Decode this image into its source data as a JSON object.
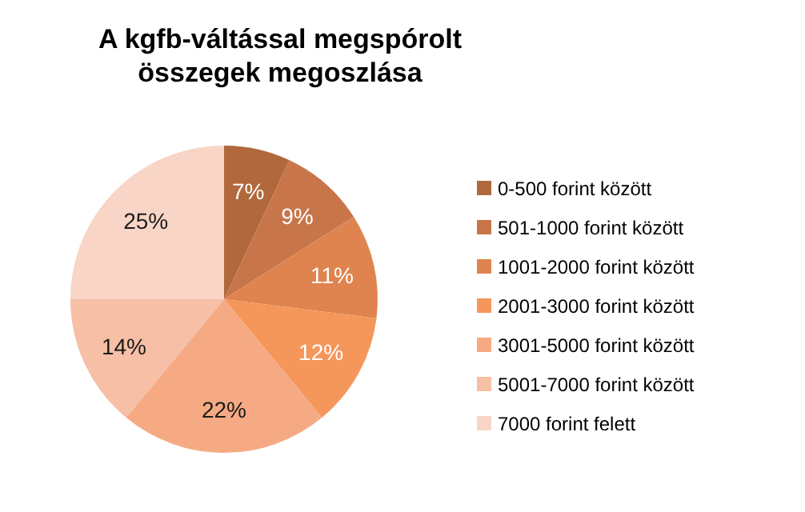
{
  "chart_data": {
    "type": "pie",
    "title": "A kgfb-váltással megspórolt összegek megoszlása",
    "categories": [
      "0-500 forint között",
      "501-1000 forint között",
      "1001-2000 forint között",
      "2001-3000 forint között",
      "3001-5000 forint között",
      "5001-7000 forint között",
      "7000 forint felett"
    ],
    "values": [
      7,
      9,
      11,
      12,
      22,
      14,
      25
    ],
    "colors": [
      "#b0683c",
      "#c8754a",
      "#df844f",
      "#f5965a",
      "#f6aa84",
      "#f6bfa6",
      "#f8d5c6"
    ],
    "value_labels": [
      "7%",
      "9%",
      "11%",
      "12%",
      "22%",
      "14%",
      "25%"
    ],
    "legend": "right"
  }
}
